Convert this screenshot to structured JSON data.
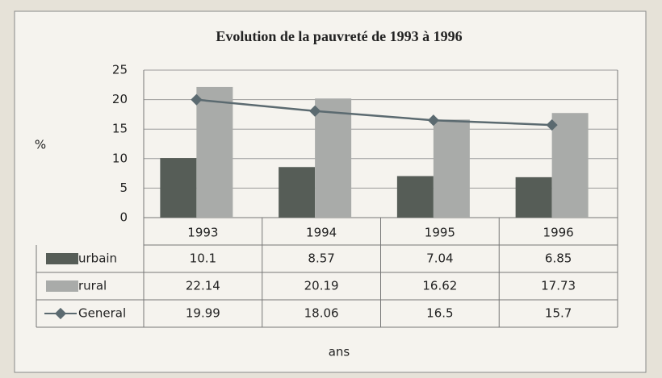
{
  "chart_data": {
    "type": "bar",
    "title": "Evolution de la pauvreté de 1993 à 1996",
    "y_label": "%",
    "x_label": "ans",
    "categories": [
      "1993",
      "1994",
      "1995",
      "1996"
    ],
    "series": [
      {
        "name": "urbain",
        "color": "#565d57",
        "type": "bar",
        "values": [
          10.1,
          8.57,
          7.04,
          6.85
        ]
      },
      {
        "name": "rural",
        "color": "#a9aba9",
        "type": "bar",
        "values": [
          22.14,
          20.19,
          16.62,
          17.73
        ]
      },
      {
        "name": "General",
        "color": "#5b6a70",
        "type": "line",
        "values": [
          19.99,
          18.06,
          16.5,
          15.7
        ]
      }
    ],
    "ylim": [
      0,
      25
    ],
    "yticks": [
      0,
      5,
      10,
      15,
      20,
      25
    ],
    "grid": true
  }
}
